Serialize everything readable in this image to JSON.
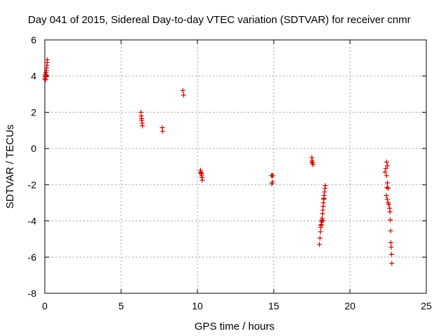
{
  "chart_data": {
    "type": "scatter",
    "title": "Day 041 of 2015, Sidereal Day-to-day VTEC variation (SDTVAR) for receiver cnmr",
    "xlabel": "GPS time / hours",
    "ylabel": "SDTVAR / TECUs",
    "xlim": [
      0,
      25
    ],
    "ylim": [
      -8,
      6
    ],
    "xticks": [
      0,
      5,
      10,
      15,
      20,
      25
    ],
    "yticks": [
      -8,
      -6,
      -4,
      -2,
      0,
      2,
      4,
      6
    ],
    "xtick_labels": [
      "0",
      "5",
      "10",
      "15",
      "20",
      "25"
    ],
    "ytick_labels": [
      "-8",
      "-6",
      "-4",
      "-2",
      "0",
      "2",
      "4",
      "6"
    ],
    "grid": true,
    "marker": "+",
    "series": [
      {
        "name": "SDTVAR",
        "color": "#d40000",
        "points": [
          [
            0.0,
            3.85
          ],
          [
            0.02,
            4.0
          ],
          [
            0.04,
            4.1
          ],
          [
            0.06,
            3.95
          ],
          [
            0.08,
            4.2
          ],
          [
            0.1,
            4.3
          ],
          [
            0.12,
            4.45
          ],
          [
            0.14,
            4.6
          ],
          [
            0.15,
            4.75
          ],
          [
            0.16,
            4.9
          ],
          [
            0.05,
            3.8
          ],
          [
            0.1,
            4.05
          ],
          [
            6.3,
            2.0
          ],
          [
            6.32,
            1.8
          ],
          [
            6.34,
            1.65
          ],
          [
            6.36,
            1.55
          ],
          [
            6.38,
            1.4
          ],
          [
            6.4,
            1.25
          ],
          [
            7.7,
            1.15
          ],
          [
            7.72,
            0.95
          ],
          [
            9.05,
            3.2
          ],
          [
            9.1,
            2.95
          ],
          [
            10.2,
            -1.2
          ],
          [
            10.22,
            -1.3
          ],
          [
            10.25,
            -1.4
          ],
          [
            10.28,
            -1.5
          ],
          [
            10.3,
            -1.6
          ],
          [
            10.32,
            -1.75
          ],
          [
            10.24,
            -1.35
          ],
          [
            14.85,
            -1.5
          ],
          [
            14.9,
            -1.5
          ],
          [
            14.92,
            -1.85
          ],
          [
            14.95,
            -1.5
          ],
          [
            14.88,
            -1.95
          ],
          [
            17.5,
            -0.5
          ],
          [
            17.52,
            -0.65
          ],
          [
            17.55,
            -0.8
          ],
          [
            17.58,
            -0.9
          ],
          [
            17.5,
            -0.75
          ],
          [
            18.0,
            -5.3
          ],
          [
            18.03,
            -4.95
          ],
          [
            18.06,
            -4.6
          ],
          [
            18.09,
            -4.35
          ],
          [
            18.12,
            -4.2
          ],
          [
            18.14,
            -4.05
          ],
          [
            18.16,
            -3.95
          ],
          [
            18.18,
            -3.85
          ],
          [
            18.2,
            -3.6
          ],
          [
            18.22,
            -3.4
          ],
          [
            18.24,
            -3.2
          ],
          [
            18.26,
            -3.0
          ],
          [
            18.28,
            -2.8
          ],
          [
            18.3,
            -2.6
          ],
          [
            18.33,
            -2.4
          ],
          [
            18.36,
            -2.2
          ],
          [
            18.38,
            -2.05
          ],
          [
            18.3,
            -2.75
          ],
          [
            18.2,
            -4.0
          ],
          [
            18.1,
            -4.25
          ],
          [
            22.3,
            -1.3
          ],
          [
            22.35,
            -1.1
          ],
          [
            22.4,
            -0.75
          ],
          [
            22.45,
            -0.95
          ],
          [
            22.4,
            -1.5
          ],
          [
            22.45,
            -1.9
          ],
          [
            22.42,
            -2.15
          ],
          [
            22.38,
            -2.6
          ],
          [
            22.44,
            -2.8
          ],
          [
            22.5,
            -3.0
          ],
          [
            22.55,
            -3.1
          ],
          [
            22.6,
            -3.3
          ],
          [
            22.62,
            -3.5
          ],
          [
            22.64,
            -3.95
          ],
          [
            22.66,
            -4.55
          ],
          [
            22.68,
            -5.2
          ],
          [
            22.7,
            -5.45
          ],
          [
            22.72,
            -5.85
          ],
          [
            22.74,
            -6.35
          ],
          [
            22.5,
            -2.2
          ]
        ]
      }
    ]
  }
}
